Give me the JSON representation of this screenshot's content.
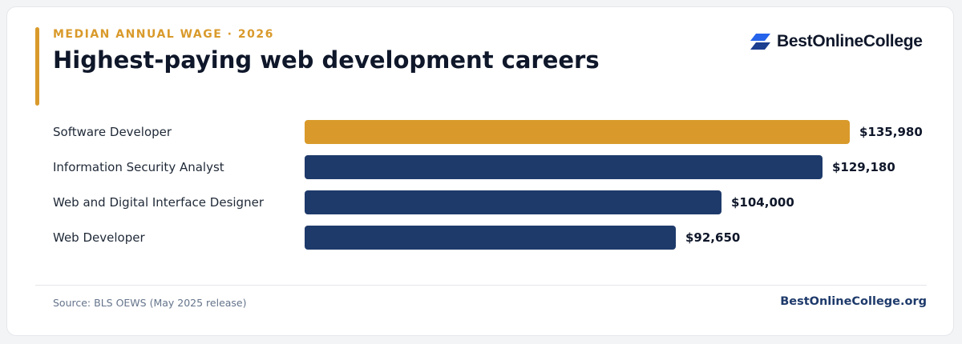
{
  "header": {
    "eyebrow": "MEDIAN ANNUAL WAGE · 2026",
    "title": "Highest-paying web development careers"
  },
  "brand": {
    "logo_icon": "stacked-parallelogram-logo-icon",
    "name": "BestOnlineCollege"
  },
  "colors": {
    "highlight": "#d99a2b",
    "bar": "#1e3a6b",
    "label": "#1f2937",
    "value": "#0f172a"
  },
  "chart_data": {
    "type": "bar",
    "orientation": "horizontal",
    "categories": [
      "Software Developer",
      "Information Security Analyst",
      "Web and Digital Interface Designer",
      "Web Developer"
    ],
    "values": [
      135980,
      129180,
      104000,
      92650
    ],
    "value_labels": [
      "$135,980",
      "$129,180",
      "$104,000",
      "$92,650"
    ],
    "highlight_index": 0,
    "xlim": [
      0,
      135980
    ],
    "grid": false,
    "legend": "none"
  },
  "footer": {
    "source": "Source: BLS OEWS (May 2025 release)",
    "site": "BestOnlineCollege.org"
  }
}
